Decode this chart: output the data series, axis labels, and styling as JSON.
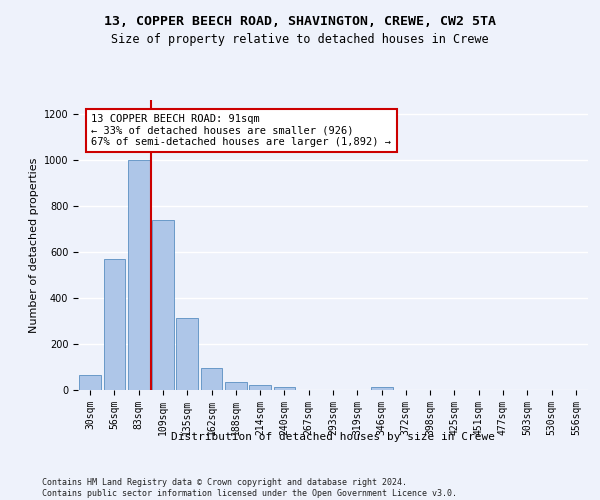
{
  "title1": "13, COPPER BEECH ROAD, SHAVINGTON, CREWE, CW2 5TA",
  "title2": "Size of property relative to detached houses in Crewe",
  "xlabel": "Distribution of detached houses by size in Crewe",
  "ylabel": "Number of detached properties",
  "footnote": "Contains HM Land Registry data © Crown copyright and database right 2024.\nContains public sector information licensed under the Open Government Licence v3.0.",
  "bin_labels": [
    "30sqm",
    "56sqm",
    "83sqm",
    "109sqm",
    "135sqm",
    "162sqm",
    "188sqm",
    "214sqm",
    "240sqm",
    "267sqm",
    "293sqm",
    "319sqm",
    "346sqm",
    "372sqm",
    "398sqm",
    "425sqm",
    "451sqm",
    "477sqm",
    "503sqm",
    "530sqm",
    "556sqm"
  ],
  "bar_values": [
    65,
    570,
    1000,
    740,
    315,
    95,
    35,
    23,
    13,
    0,
    0,
    0,
    13,
    0,
    0,
    0,
    0,
    0,
    0,
    0,
    0
  ],
  "bar_color": "#aec6e8",
  "bar_edge_color": "#5a8fc2",
  "vline_x_index": 2,
  "vline_color": "#cc0000",
  "annotation_text": "13 COPPER BEECH ROAD: 91sqm\n← 33% of detached houses are smaller (926)\n67% of semi-detached houses are larger (1,892) →",
  "annotation_box_facecolor": "#ffffff",
  "annotation_box_edgecolor": "#cc0000",
  "ylim": [
    0,
    1260
  ],
  "yticks": [
    0,
    200,
    400,
    600,
    800,
    1000,
    1200
  ],
  "background_color": "#eef2fb",
  "grid_color": "#ffffff",
  "title1_fontsize": 9.5,
  "title2_fontsize": 8.5,
  "xlabel_fontsize": 8,
  "ylabel_fontsize": 8,
  "tick_fontsize": 7,
  "annotation_fontsize": 7.5,
  "footnote_fontsize": 6
}
